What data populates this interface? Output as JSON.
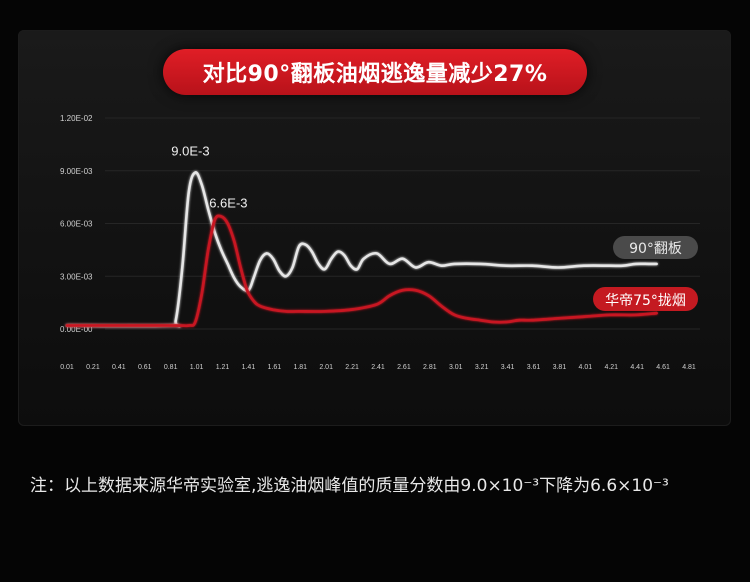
{
  "title": "对比90°翻板油烟逃逸量减少27%",
  "footnote": "注：以上数据来源华帝实验室,逃逸油烟峰值的质量分数由9.0×10⁻³下降为6.6×10⁻³",
  "colors": {
    "accent": "#d41920",
    "white_series": "#e6e6e6",
    "red_series": "#c81820"
  },
  "chart_data": {
    "type": "line",
    "title": "对比90°翻板油烟逃逸量减少27%",
    "xlabel": "",
    "ylabel": "",
    "x_ticks": [
      "0.01",
      "0.21",
      "0.41",
      "0.61",
      "0.81",
      "1.01",
      "1.21",
      "1.41",
      "1.61",
      "1.81",
      "2.01",
      "2.21",
      "2.41",
      "2.61",
      "2.81",
      "3.01",
      "3.21",
      "3.41",
      "3.61",
      "3.81",
      "4.01",
      "4.21",
      "4.41",
      "4.61",
      "4.81"
    ],
    "y_ticks": [
      "0.00E-00",
      "3.00E-03",
      "6.00E-03",
      "9.00E-03",
      "1.20E-02"
    ],
    "xlim": [
      0.01,
      4.81
    ],
    "ylim": [
      0,
      0.012
    ],
    "grid": true,
    "series": [
      {
        "name": "90°翻板",
        "color": "#e6e6e6",
        "peak_label": "9.0E-3",
        "x": [
          0.01,
          0.81,
          0.85,
          0.9,
          0.95,
          1.0,
          1.05,
          1.1,
          1.15,
          1.2,
          1.25,
          1.3,
          1.35,
          1.41,
          1.45,
          1.5,
          1.55,
          1.6,
          1.65,
          1.7,
          1.75,
          1.8,
          1.85,
          1.9,
          1.95,
          2.0,
          2.05,
          2.1,
          2.15,
          2.2,
          2.25,
          2.3,
          2.4,
          2.5,
          2.6,
          2.7,
          2.8,
          2.9,
          3.0,
          3.2,
          3.4,
          3.6,
          3.8,
          4.0,
          4.2,
          4.3,
          4.4,
          4.5,
          4.56
        ],
        "y": [
          0.0002,
          0.0002,
          0.0005,
          0.0035,
          0.0078,
          0.0089,
          0.0082,
          0.0068,
          0.0055,
          0.0045,
          0.0037,
          0.0029,
          0.0024,
          0.0022,
          0.0029,
          0.0039,
          0.0043,
          0.004,
          0.0033,
          0.003,
          0.0035,
          0.0047,
          0.0048,
          0.0044,
          0.0037,
          0.0034,
          0.004,
          0.0044,
          0.0042,
          0.0036,
          0.0034,
          0.004,
          0.0043,
          0.0037,
          0.004,
          0.0035,
          0.0038,
          0.0036,
          0.0037,
          0.0037,
          0.0036,
          0.0036,
          0.0035,
          0.0036,
          0.0036,
          0.0036,
          0.0037,
          0.0037,
          0.0037
        ]
      },
      {
        "name": "华帝75°拢烟",
        "color": "#c81820",
        "peak_label": "6.6E-3",
        "x": [
          0.01,
          0.81,
          0.95,
          1.0,
          1.05,
          1.1,
          1.15,
          1.2,
          1.25,
          1.3,
          1.35,
          1.4,
          1.45,
          1.5,
          1.6,
          1.7,
          1.8,
          2.0,
          2.2,
          2.4,
          2.5,
          2.6,
          2.7,
          2.8,
          2.9,
          3.0,
          3.1,
          3.2,
          3.3,
          3.4,
          3.5,
          3.6,
          3.8,
          4.0,
          4.2,
          4.4,
          4.56
        ],
        "y": [
          0.0002,
          0.0002,
          0.0002,
          0.0004,
          0.002,
          0.0045,
          0.0062,
          0.0064,
          0.006,
          0.005,
          0.0035,
          0.0022,
          0.0016,
          0.0013,
          0.0011,
          0.001,
          0.001,
          0.001,
          0.0011,
          0.0014,
          0.0019,
          0.0022,
          0.0022,
          0.0019,
          0.0013,
          0.0008,
          0.0006,
          0.0005,
          0.0004,
          0.0004,
          0.0005,
          0.0005,
          0.0006,
          0.0007,
          0.0008,
          0.0008,
          0.0009
        ]
      }
    ]
  }
}
